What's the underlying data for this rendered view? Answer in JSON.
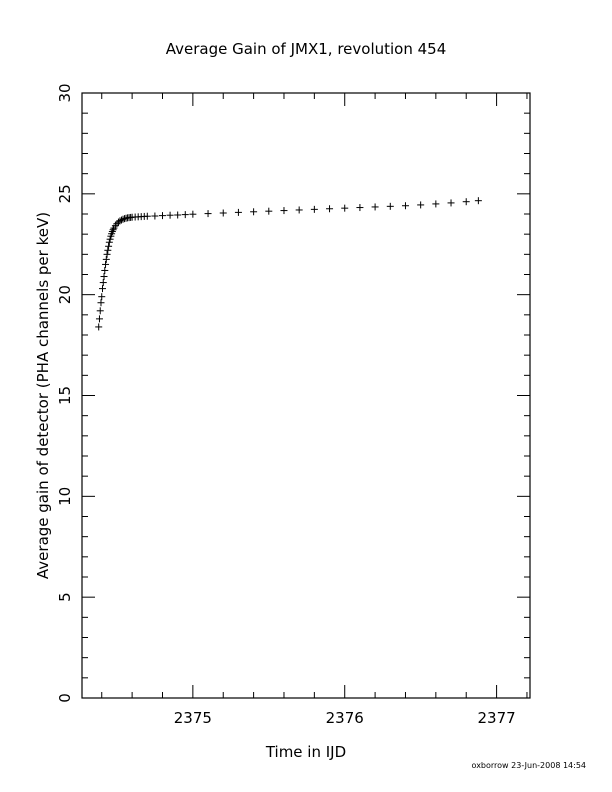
{
  "chart_data": {
    "type": "scatter",
    "title": "Average Gain of JMX1, revolution 454",
    "xlabel": "Time in IJD",
    "ylabel": "Average gain of detector (PHA channels per keV)",
    "xlim": [
      2374.27,
      2377.22
    ],
    "ylim": [
      0,
      30
    ],
    "x_ticks": [
      2375,
      2376,
      2377
    ],
    "x_tick_labels": [
      "2375",
      "2376",
      "2377"
    ],
    "y_ticks": [
      0,
      5,
      10,
      15,
      20,
      25,
      30
    ],
    "y_tick_labels": [
      "0",
      "5",
      "10",
      "15",
      "20",
      "25",
      "30"
    ],
    "grid": false,
    "marker": "+",
    "color": "#000000",
    "series": [
      {
        "x": [
          2374.38,
          2374.385,
          2374.39,
          2374.395,
          2374.4,
          2374.405,
          2374.41,
          2374.415,
          2374.42,
          2374.425,
          2374.43,
          2374.435,
          2374.44,
          2374.445,
          2374.45,
          2374.455,
          2374.46,
          2374.465,
          2374.47,
          2374.475,
          2374.48,
          2374.49,
          2374.5,
          2374.51,
          2374.52,
          2374.53,
          2374.54,
          2374.55,
          2374.56,
          2374.57,
          2374.58,
          2374.59,
          2374.6,
          2374.62,
          2374.64,
          2374.66,
          2374.68,
          2374.7,
          2374.75,
          2374.8,
          2374.85,
          2374.9,
          2374.95,
          2375.0,
          2375.1,
          2375.2,
          2375.3,
          2375.4,
          2375.5,
          2375.6,
          2375.7,
          2375.8,
          2375.9,
          2376.0,
          2376.1,
          2376.2,
          2376.3,
          2376.4,
          2376.5,
          2376.6,
          2376.7,
          2376.8,
          2376.88
        ],
        "y": [
          18.4,
          18.8,
          19.2,
          19.6,
          19.9,
          20.3,
          20.6,
          20.9,
          21.2,
          21.5,
          21.75,
          22.0,
          22.2,
          22.4,
          22.6,
          22.75,
          22.9,
          23.02,
          23.13,
          23.22,
          23.3,
          23.42,
          23.52,
          23.6,
          23.66,
          23.7,
          23.74,
          23.77,
          23.79,
          23.81,
          23.82,
          23.83,
          23.84,
          23.85,
          23.86,
          23.87,
          23.88,
          23.89,
          23.9,
          23.92,
          23.94,
          23.95,
          23.97,
          23.99,
          24.02,
          24.05,
          24.08,
          24.11,
          24.14,
          24.17,
          24.2,
          24.23,
          24.26,
          24.29,
          24.32,
          24.35,
          24.38,
          24.41,
          24.45,
          24.5,
          24.55,
          24.61,
          24.66
        ]
      }
    ]
  },
  "footer": {
    "stamp": "oxborrow 23-Jun-2008 14:54"
  }
}
